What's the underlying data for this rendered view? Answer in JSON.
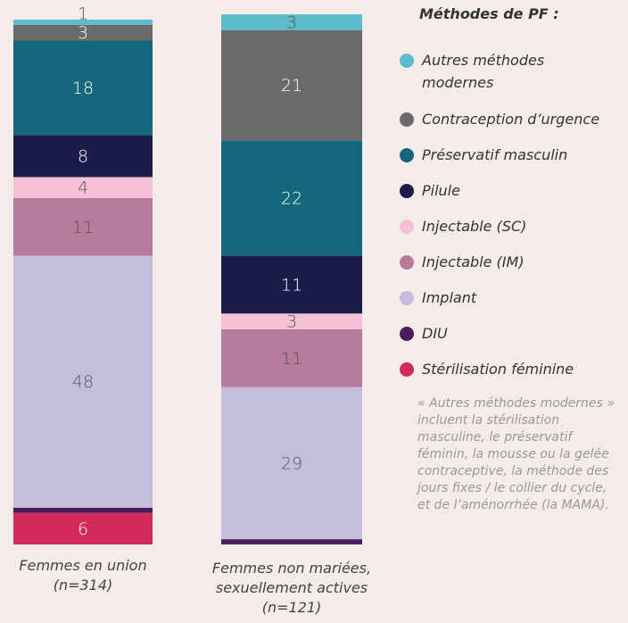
{
  "chart_data": {
    "type": "stacked_bar",
    "legend_title": "Méthodes de PF :",
    "categories": [
      "Femmes en union (n=314)",
      "Femmes non mariées, sexuellement actives (n=121)"
    ],
    "series": [
      {
        "name": "Stérilisation féminine",
        "color": "#d4295b",
        "values": [
          6,
          null
        ]
      },
      {
        "name": "DIU",
        "color": "#4b1c5e",
        "values": [
          1,
          1
        ]
      },
      {
        "name": "Implant",
        "color": "#c4bedc",
        "values": [
          48,
          29
        ]
      },
      {
        "name": "Injectable (IM)",
        "color": "#b87a9a",
        "values": [
          11,
          11
        ]
      },
      {
        "name": "Injectable (SC)",
        "color": "#f6c1d8",
        "values": [
          4,
          3
        ]
      },
      {
        "name": "Pilule",
        "color": "#1b1c4a",
        "values": [
          8,
          11
        ]
      },
      {
        "name": "Préservatif masculin",
        "color": "#15677b",
        "values": [
          18,
          22
        ]
      },
      {
        "name": "Contraception d’urgence",
        "color": "#6a6a6a",
        "values": [
          3,
          21
        ]
      },
      {
        "name": "Autres méthodes modernes",
        "color": "#5bbccc",
        "values": [
          1,
          3
        ]
      }
    ],
    "ylim": [
      0,
      100
    ],
    "note": "« Autres méthodes modernes » incluent la stérilisation masculine, le préservatif féminin, la mousse ou la gelée contraceptive, la méthode des jours fixes / le collier du cycle, et de l’aménorrhée (la MAMA)."
  }
}
